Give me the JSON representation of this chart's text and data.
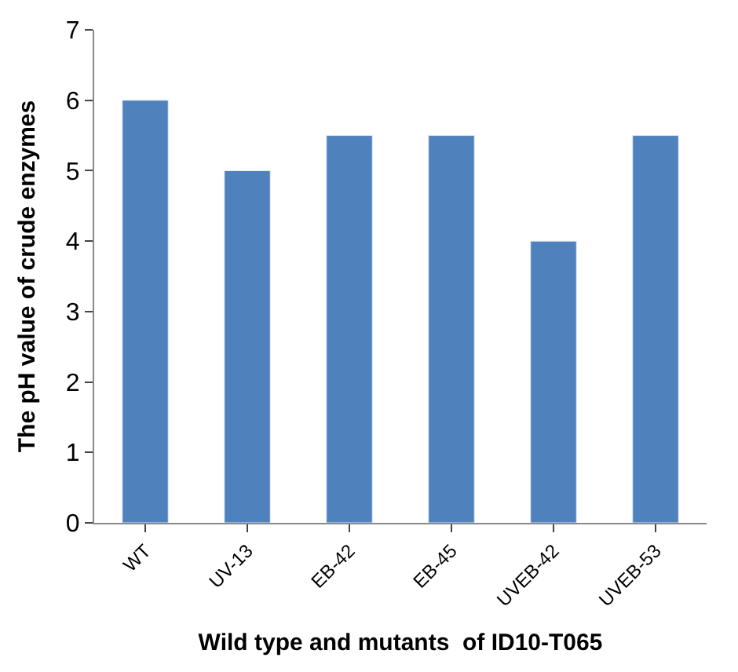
{
  "chart_data": {
    "type": "bar",
    "xlabel": "Wild type and mutants  of ID10-T065",
    "ylabel": "The pH value of crude enzymes",
    "categories": [
      "WT",
      "UV-13",
      "EB-42",
      "EB-45",
      "UVEB-42",
      "UVEB-53"
    ],
    "values": [
      6,
      5,
      5.5,
      5.5,
      4,
      5.5
    ],
    "color": "#4f81bd",
    "ylim": [
      0,
      7
    ],
    "yticks": [
      0,
      1,
      2,
      3,
      4,
      5,
      6,
      7
    ]
  }
}
